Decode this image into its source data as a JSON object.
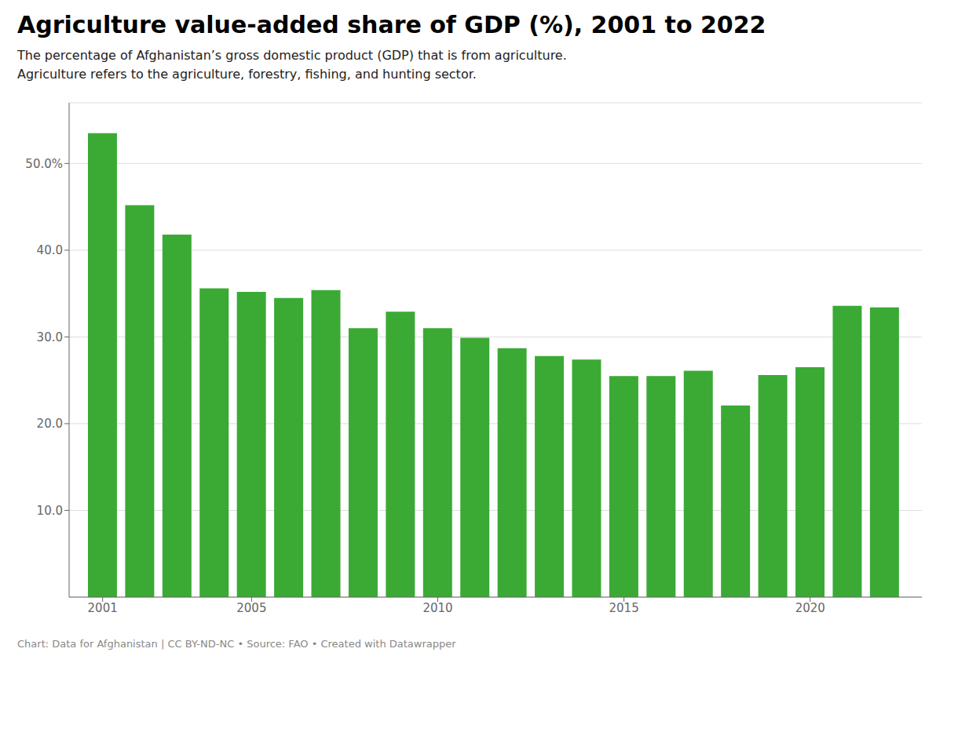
{
  "chart_data": {
    "type": "bar",
    "title": "Agriculture value-added share of GDP (%), 2001 to 2022",
    "subtitle": [
      "The percentage of Afghanistan’s gross domestic product (GDP) that is from agriculture.",
      "Agriculture refers to the agriculture, forestry, fishing, and hunting sector."
    ],
    "annotations": [
      "Chart: Data for Afghanistan | CC BY-ND-NC  •  Source: FAO  •  Created with Datawrapper"
    ],
    "x": [
      2001,
      2002,
      2003,
      2004,
      2005,
      2006,
      2007,
      2008,
      2009,
      2010,
      2011,
      2012,
      2013,
      2014,
      2015,
      2016,
      2017,
      2018,
      2019,
      2020,
      2021,
      2022
    ],
    "values": [
      53.5,
      45.2,
      41.8,
      35.6,
      35.2,
      34.5,
      35.4,
      31.0,
      32.9,
      31.0,
      29.9,
      28.7,
      27.8,
      27.4,
      25.5,
      25.5,
      26.1,
      22.1,
      25.6,
      26.5,
      33.6,
      33.4
    ],
    "color": "#3aaa35",
    "xlim": [
      2000.1,
      2023.0
    ],
    "xticks": [
      2001,
      2005,
      2010,
      2015,
      2020
    ],
    "ylim": [
      0,
      57
    ],
    "yticks": [
      {
        "value": 10,
        "label": "10.0"
      },
      {
        "value": 20,
        "label": "20.0"
      },
      {
        "value": 30,
        "label": "30.0"
      },
      {
        "value": 40,
        "label": "40.0"
      },
      {
        "value": 50,
        "label": "50.0%"
      }
    ],
    "grid": true
  }
}
